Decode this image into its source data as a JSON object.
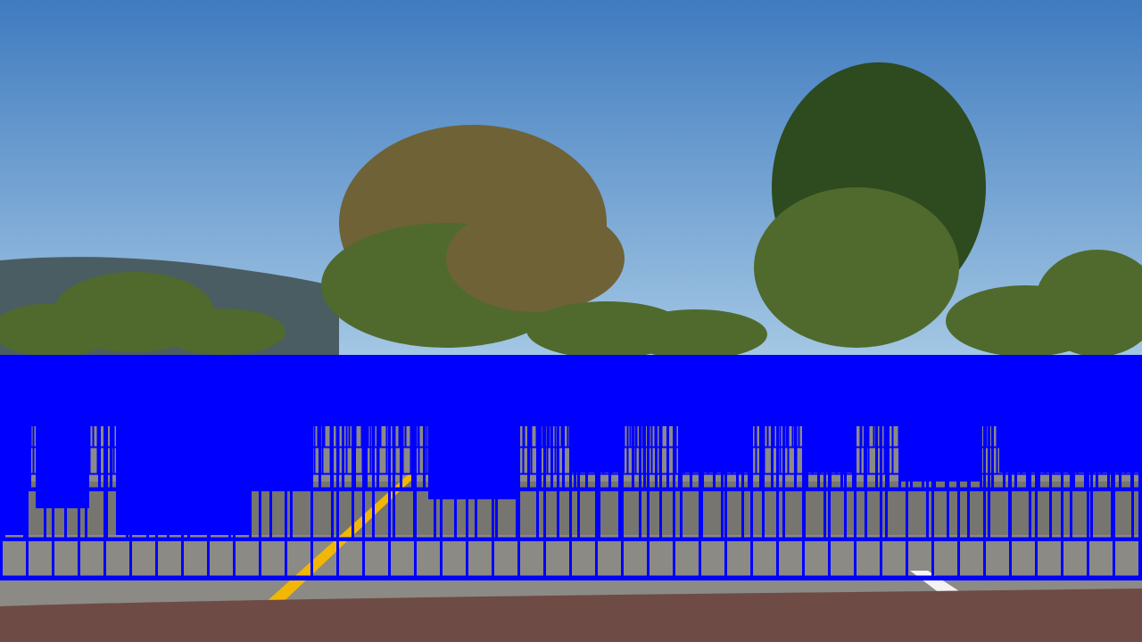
{
  "colors": {
    "sky_top": "#3f7bbf",
    "sky_bottom": "#a9cbe6",
    "hills": "#4a5d63",
    "tree_dark": "#2e4a1f",
    "tree_mid": "#4f6a2c",
    "tree_brown": "#6e6236",
    "road": "#8c8a84",
    "road_shadow": "#5b5a56",
    "lane_yellow": "#f2b705",
    "lane_white": "#f3f3f3",
    "hood": "#6e4b45",
    "detection_box": "#0000ff"
  },
  "scene": {
    "overlay": "sliding-window-search",
    "description_tags": [
      "sky",
      "hills",
      "trees",
      "highway",
      "lane-lines",
      "car-hood",
      "bounding-boxes"
    ]
  }
}
